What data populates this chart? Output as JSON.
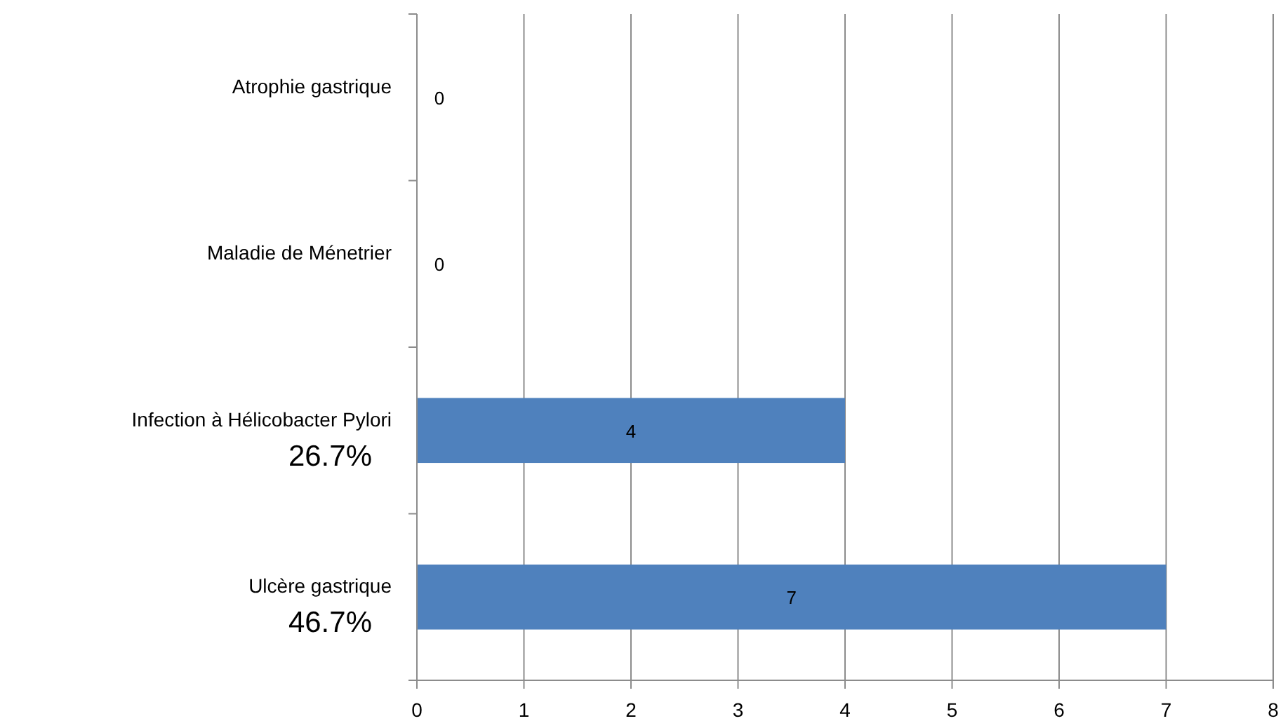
{
  "chart_data": {
    "type": "bar",
    "orientation": "horizontal",
    "categories": [
      "Atrophie gastrique",
      "Maladie de Ménetrier",
      "Infection à Hélicobacter Pylori",
      "Ulcère gastrique"
    ],
    "values": [
      0,
      0,
      4,
      7
    ],
    "color": "#4f81bd",
    "xlim": [
      0,
      8
    ],
    "xticks": [
      0,
      1,
      2,
      3,
      4,
      5,
      6,
      7,
      8
    ],
    "grid": "x",
    "data_labels": true,
    "annotations": [
      "26.7%",
      "46.7%"
    ]
  }
}
